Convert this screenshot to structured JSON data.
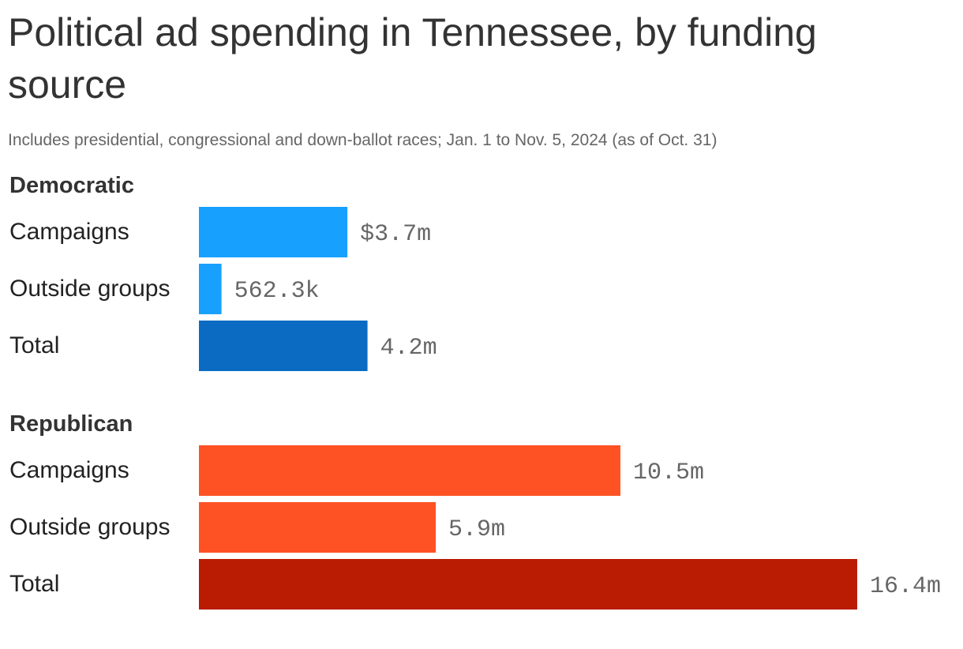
{
  "title": "Political ad spending in Tennessee, by funding source",
  "subtitle": "Includes presidential, congressional and down-ballot races; Jan. 1 to Nov. 5, 2024 (as of Oct. 31)",
  "chart_data": {
    "type": "bar",
    "orientation": "horizontal",
    "title": "Political ad spending in Tennessee, by funding source",
    "subtitle": "Includes presidential, congressional and down-ballot races; Jan. 1 to Nov. 5, 2024 (as of Oct. 31)",
    "unit": "USD",
    "xlim": [
      0,
      16400000
    ],
    "grid": false,
    "groups": [
      {
        "name": "Democratic",
        "bars": [
          {
            "label": "Campaigns",
            "value": 3700000,
            "value_label": "$3.7m",
            "color": "#18a0ff"
          },
          {
            "label": "Outside groups",
            "value": 562300,
            "value_label": "562.3k",
            "color": "#18a0ff"
          },
          {
            "label": "Total",
            "value": 4200000,
            "value_label": "4.2m",
            "color": "#0b6bc2"
          }
        ]
      },
      {
        "name": "Republican",
        "bars": [
          {
            "label": "Campaigns",
            "value": 10500000,
            "value_label": "10.5m",
            "color": "#ff5224"
          },
          {
            "label": "Outside groups",
            "value": 5900000,
            "value_label": "5.9m",
            "color": "#ff5224"
          },
          {
            "label": "Total",
            "value": 16400000,
            "value_label": "16.4m",
            "color": "#b91b03"
          }
        ]
      }
    ]
  }
}
